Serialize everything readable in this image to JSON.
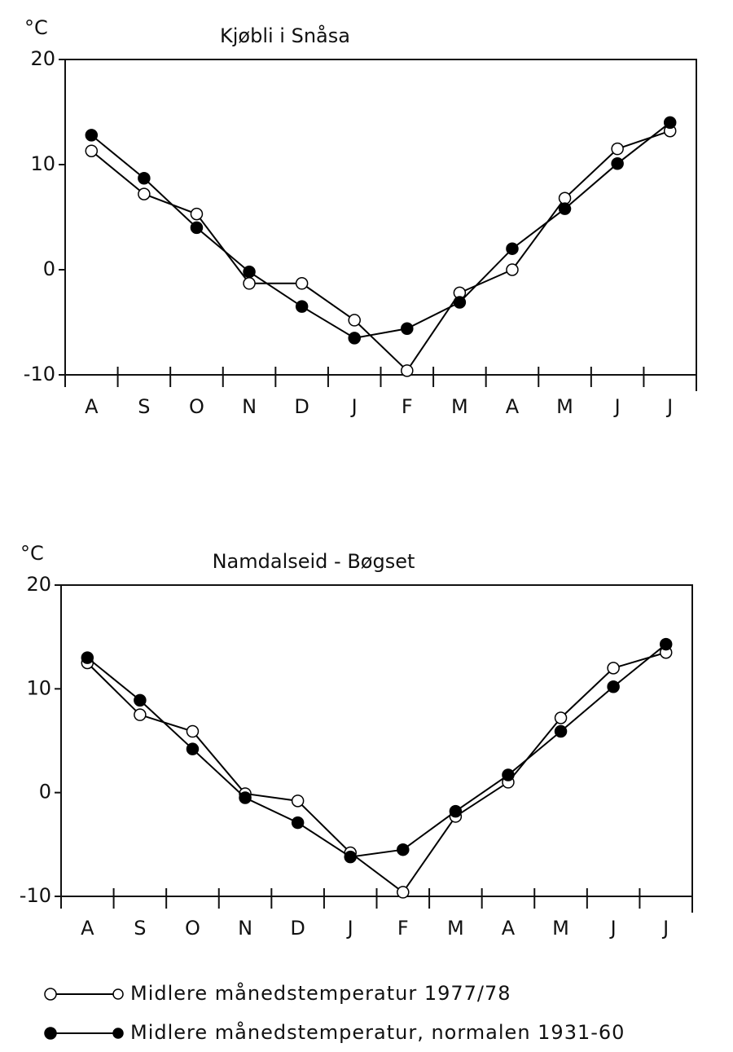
{
  "chart_data": [
    {
      "type": "line",
      "title": "Kjøbli i Snåsa",
      "ylabel": "°C",
      "categories": [
        "A",
        "S",
        "O",
        "N",
        "D",
        "J",
        "F",
        "M",
        "A",
        "M",
        "J",
        "J"
      ],
      "ylim": [
        -10,
        20
      ],
      "yticks": [
        -10,
        0,
        10,
        20
      ],
      "series": [
        {
          "name": "Midlere månedstemperatur 1977/78",
          "color": "#000",
          "marker_fill": "#fff",
          "values": [
            11.3,
            7.2,
            5.3,
            -1.3,
            -1.3,
            -4.8,
            -9.6,
            -2.2,
            0,
            6.8,
            11.5,
            13.2
          ]
        },
        {
          "name": "Midlere månedstemperatur, normalen 1931-60",
          "color": "#000",
          "marker_fill": "#000",
          "values": [
            12.8,
            8.7,
            4.0,
            -0.2,
            -3.5,
            -6.5,
            -5.6,
            -3.1,
            2.0,
            5.8,
            10.1,
            14.0
          ]
        }
      ]
    },
    {
      "type": "line",
      "title": "Namdalseid - Bøgset",
      "ylabel": "°C",
      "categories": [
        "A",
        "S",
        "O",
        "N",
        "D",
        "J",
        "F",
        "M",
        "A",
        "M",
        "J",
        "J"
      ],
      "ylim": [
        -10,
        20
      ],
      "yticks": [
        -10,
        0,
        10,
        20
      ],
      "series": [
        {
          "color": "#000",
          "marker_fill": "#fff",
          "values": [
            12.5,
            7.5,
            5.9,
            -0.1,
            -0.8,
            -5.8,
            -9.6,
            -2.3,
            1.0,
            7.2,
            12.0,
            13.5
          ]
        },
        {
          "color": "#000",
          "marker_fill": "#000",
          "values": [
            13.0,
            8.9,
            4.2,
            -0.5,
            -2.9,
            -6.2,
            -5.5,
            -1.8,
            1.7,
            5.9,
            10.2,
            14.3
          ]
        }
      ]
    }
  ]
}
